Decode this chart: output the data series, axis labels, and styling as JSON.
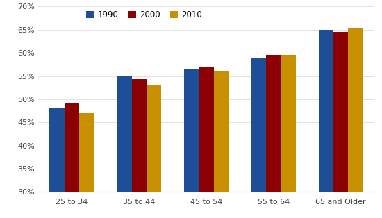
{
  "categories": [
    "25 to 34",
    "35 to 44",
    "45 to 54",
    "55 to 64",
    "65 and Older"
  ],
  "series": {
    "1990": [
      0.48,
      0.549,
      0.565,
      0.588,
      0.65
    ],
    "2000": [
      0.492,
      0.543,
      0.57,
      0.595,
      0.645
    ],
    "2010": [
      0.47,
      0.532,
      0.562,
      0.595,
      0.653
    ]
  },
  "colors": {
    "1990": "#1F4E99",
    "2000": "#8B0000",
    "2010": "#C89000"
  },
  "legend_labels": [
    "1990",
    "2000",
    "2010"
  ],
  "ylim": [
    0.3,
    0.7
  ],
  "yticks": [
    0.3,
    0.35,
    0.4,
    0.45,
    0.5,
    0.55,
    0.6,
    0.65,
    0.7
  ],
  "bar_width": 0.22,
  "figsize": [
    5.5,
    3.14
  ],
  "dpi": 100,
  "background_color": "#FFFFFF"
}
